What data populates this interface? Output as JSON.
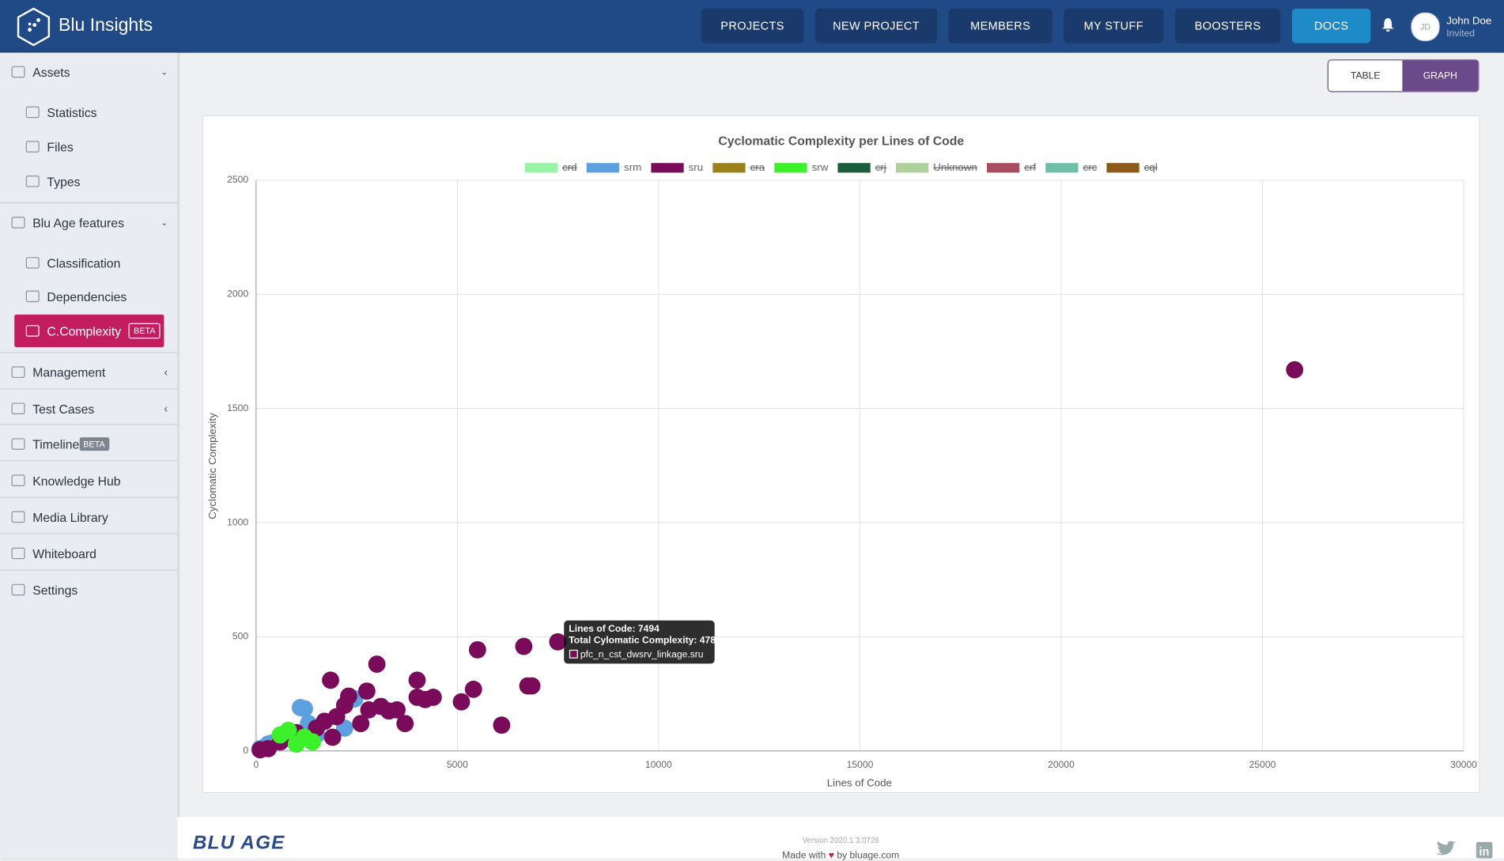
{
  "header": {
    "brand": "Blu Insights",
    "nav": [
      "PROJECTS",
      "NEW PROJECT",
      "MEMBERS",
      "MY STUFF",
      "BOOSTERS",
      "DOCS"
    ],
    "user": {
      "initials": "JD",
      "name": "John Doe",
      "status": "Invited"
    }
  },
  "sidebar": {
    "items": [
      {
        "label": "Assets"
      },
      {
        "label": "Statistics"
      },
      {
        "label": "Files"
      },
      {
        "label": "Types"
      },
      {
        "label": "Blu Age features"
      },
      {
        "label": "Classification"
      },
      {
        "label": "Dependencies"
      },
      {
        "label": "C.Complexity",
        "badge": "BETA"
      },
      {
        "label": "Management"
      },
      {
        "label": "Test Cases"
      },
      {
        "label": "Timeline",
        "badge": "BETA"
      },
      {
        "label": "Knowledge Hub"
      },
      {
        "label": "Media Library"
      },
      {
        "label": "Whiteboard"
      },
      {
        "label": "Settings"
      }
    ]
  },
  "view_toggle": [
    "TABLE",
    "GRAPH"
  ],
  "tooltip": {
    "lines": [
      "Lines of Code: 7494",
      "Total Cylomatic Complexity: 478"
    ],
    "label": "pfc_n_cst_dwsrv_linkage.sru"
  },
  "footer": {
    "logo": "BLU AGE",
    "version": "Version 2020.1.3.0726",
    "made": "Made with",
    "by": "by bluage.com"
  },
  "chart_data": {
    "type": "scatter",
    "title": "Cyclomatic Complexity per Lines of Code",
    "x_label": "Lines of Code",
    "y_label": "Cyclomatic Complexity",
    "xlim": [
      0,
      30000
    ],
    "xticks": [
      0,
      5000,
      10000,
      15000,
      20000,
      25000,
      30000
    ],
    "ylim": [
      0,
      2500
    ],
    "yticks": [
      0,
      500,
      1000,
      1500,
      2000,
      2500
    ],
    "grid": true,
    "series": [
      {
        "name": "crd",
        "color": "#98f5a8",
        "hidden": true,
        "x": [],
        "values": []
      },
      {
        "name": "srm",
        "color": "#5da0e0",
        "hidden": false,
        "x": [
          1100,
          1200,
          2450,
          2200,
          1500,
          800,
          1300,
          500,
          300,
          200,
          900,
          100,
          600,
          400
        ],
        "values": [
          190,
          185,
          228,
          100,
          70,
          80,
          120,
          40,
          30,
          15,
          50,
          10,
          60,
          35
        ]
      },
      {
        "name": "sru",
        "color": "#7a0a5a",
        "hidden": false,
        "x": [
          25800,
          6650,
          5500,
          3000,
          4000,
          1850,
          6750,
          6850,
          5400,
          2750,
          5100,
          6100,
          3700,
          4200,
          4000,
          4400,
          2300,
          3100,
          3300,
          2800,
          2000,
          1900,
          1500,
          2600,
          1000,
          600,
          300,
          100,
          7494,
          3500,
          2200,
          1700
        ],
        "values": [
          1670,
          458,
          443,
          380,
          310,
          310,
          285,
          285,
          270,
          262,
          215,
          113,
          120,
          225,
          235,
          235,
          240,
          195,
          175,
          180,
          150,
          60,
          100,
          120,
          80,
          40,
          10,
          5,
          478,
          180,
          200,
          130
        ]
      },
      {
        "name": "cra",
        "color": "#9a8218",
        "hidden": true,
        "x": [],
        "values": []
      },
      {
        "name": "srw",
        "color": "#3cf02a",
        "hidden": false,
        "x": [
          800,
          1200,
          1000,
          600,
          1400
        ],
        "values": [
          90,
          60,
          30,
          70,
          40
        ]
      },
      {
        "name": "crj",
        "color": "#1a5e3c",
        "hidden": true,
        "x": [],
        "values": []
      },
      {
        "name": "Unknown",
        "color": "#aed09a",
        "hidden": true,
        "x": [],
        "values": []
      },
      {
        "name": "crf",
        "color": "#a84e60",
        "hidden": true,
        "x": [],
        "values": []
      },
      {
        "name": "crc",
        "color": "#6ebfa8",
        "hidden": true,
        "x": [],
        "values": []
      },
      {
        "name": "cql",
        "color": "#8e5a1a",
        "hidden": true,
        "x": [],
        "values": []
      }
    ]
  }
}
